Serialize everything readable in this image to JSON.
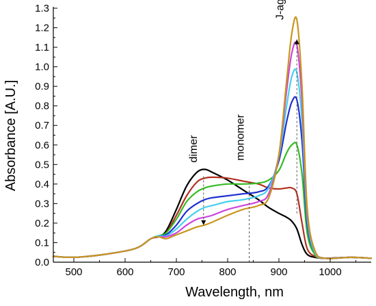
{
  "chart_data": {
    "type": "line",
    "xlabel": "Wavelength, nm",
    "ylabel": "Absorbance [A.U.]",
    "xlim": [
      460,
      1080
    ],
    "ylim": [
      0,
      1.3
    ],
    "x_ticks": [
      500,
      600,
      700,
      800,
      900,
      1000
    ],
    "y_ticks": [
      0.0,
      0.1,
      0.2,
      0.3,
      0.4,
      0.5,
      0.6,
      0.7,
      0.8,
      0.9,
      1.0,
      1.1,
      1.2,
      1.3
    ],
    "annotations": [
      {
        "text": "dimer",
        "x": 753,
        "y": 0.51
      },
      {
        "text": "monomer",
        "x": 842,
        "y": 0.52
      },
      {
        "text": "J-aggregate",
        "x": 935,
        "y": 1.24
      }
    ],
    "guides": [
      {
        "x": 753,
        "y_from": 0.44,
        "y_to": 0.19,
        "arrow": "down"
      },
      {
        "x": 842,
        "y_from": 0.0,
        "y_to": 0.42,
        "arrow": "none"
      },
      {
        "x": 935,
        "y_from": 0.25,
        "y_to": 1.14,
        "arrow": "up"
      }
    ],
    "x": [
      460,
      500,
      560,
      620,
      650,
      665,
      680,
      700,
      720,
      740,
      755,
      770,
      800,
      830,
      860,
      880,
      900,
      915,
      925,
      935,
      945,
      955,
      970,
      990,
      1040,
      1080
    ],
    "series": [
      {
        "color": "#000000",
        "values": [
          0.03,
          0.025,
          0.04,
          0.07,
          0.12,
          0.13,
          0.16,
          0.27,
          0.39,
          0.46,
          0.475,
          0.46,
          0.42,
          0.37,
          0.32,
          0.28,
          0.25,
          0.23,
          0.21,
          0.17,
          0.09,
          0.04,
          0.025,
          0.02,
          0.025,
          0.02
        ]
      },
      {
        "color": "#b03020",
        "values": [
          0.03,
          0.025,
          0.04,
          0.07,
          0.12,
          0.13,
          0.15,
          0.24,
          0.34,
          0.41,
          0.43,
          0.435,
          0.43,
          0.415,
          0.4,
          0.38,
          0.375,
          0.38,
          0.38,
          0.35,
          0.2,
          0.07,
          0.03,
          0.02,
          0.025,
          0.02
        ]
      },
      {
        "color": "#33bb22",
        "values": [
          0.03,
          0.025,
          0.04,
          0.07,
          0.12,
          0.135,
          0.15,
          0.22,
          0.31,
          0.36,
          0.38,
          0.39,
          0.4,
          0.4,
          0.405,
          0.42,
          0.47,
          0.56,
          0.6,
          0.6,
          0.45,
          0.15,
          0.04,
          0.02,
          0.025,
          0.02
        ]
      },
      {
        "color": "#1f2fd0",
        "values": [
          0.03,
          0.025,
          0.04,
          0.07,
          0.12,
          0.135,
          0.14,
          0.19,
          0.26,
          0.3,
          0.32,
          0.33,
          0.34,
          0.35,
          0.36,
          0.39,
          0.52,
          0.72,
          0.82,
          0.83,
          0.62,
          0.2,
          0.05,
          0.02,
          0.025,
          0.02
        ]
      },
      {
        "color": "#44d0ee",
        "values": [
          0.03,
          0.025,
          0.04,
          0.07,
          0.12,
          0.135,
          0.135,
          0.17,
          0.22,
          0.26,
          0.28,
          0.29,
          0.31,
          0.32,
          0.34,
          0.38,
          0.54,
          0.8,
          0.95,
          0.97,
          0.72,
          0.23,
          0.05,
          0.02,
          0.025,
          0.02
        ]
      },
      {
        "color": "#cc44dd",
        "values": [
          0.03,
          0.025,
          0.04,
          0.07,
          0.12,
          0.13,
          0.13,
          0.15,
          0.19,
          0.22,
          0.23,
          0.24,
          0.27,
          0.29,
          0.31,
          0.35,
          0.55,
          0.88,
          1.07,
          1.11,
          0.82,
          0.26,
          0.06,
          0.02,
          0.025,
          0.02
        ]
      },
      {
        "color": "#c8961e",
        "values": [
          0.03,
          0.025,
          0.04,
          0.07,
          0.12,
          0.13,
          0.12,
          0.14,
          0.16,
          0.18,
          0.19,
          0.205,
          0.24,
          0.27,
          0.29,
          0.33,
          0.55,
          0.93,
          1.17,
          1.24,
          0.9,
          0.28,
          0.06,
          0.02,
          0.025,
          0.02
        ]
      }
    ]
  }
}
